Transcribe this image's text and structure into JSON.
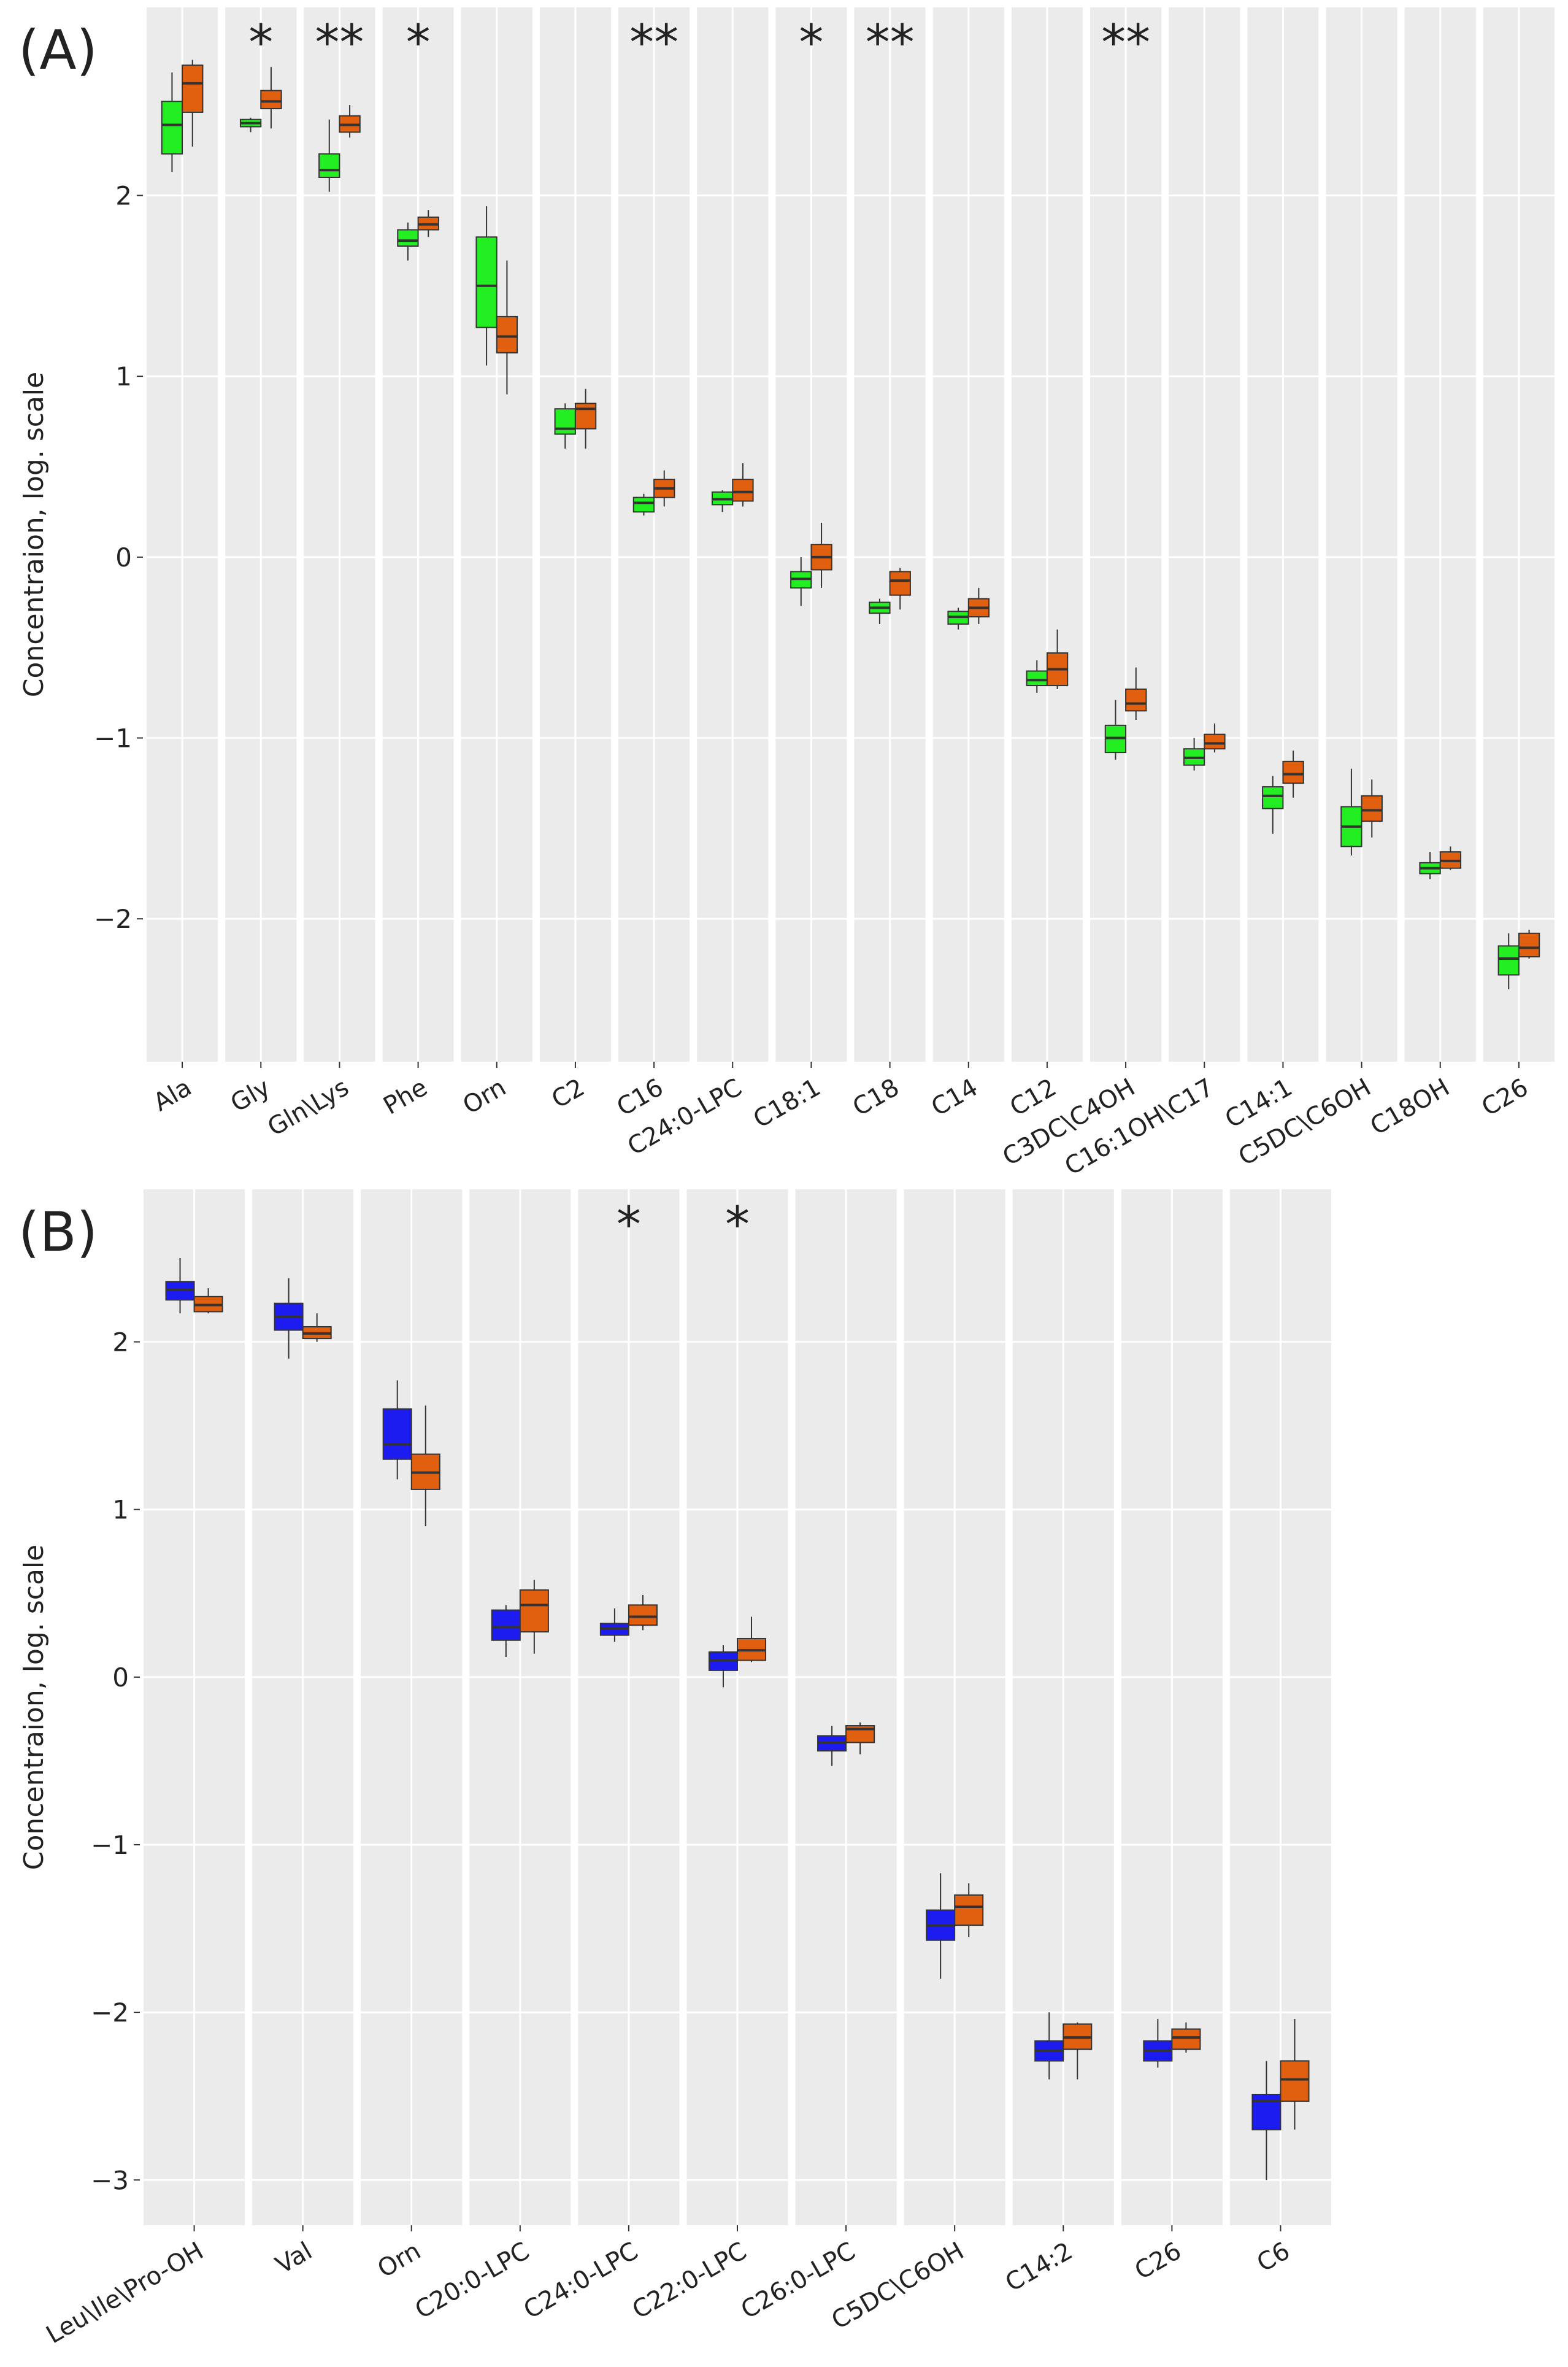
{
  "chart_data": [
    {
      "type": "box",
      "panel_label": "(A)",
      "ylabel": "Concentraion, log. scale",
      "categories": [
        "Ala",
        "Gly",
        "Gln\\Lys",
        "Phe",
        "Orn",
        "C2",
        "C16",
        "C24:0-LPC",
        "C18:1",
        "C18",
        "C14",
        "C12",
        "C3DC\\C4OH",
        "C16:1OH\\C17",
        "C14:1",
        "C5DC\\C6OH",
        "C18OH",
        "C26"
      ],
      "annotations": [
        null,
        "*",
        "**",
        "*",
        null,
        null,
        "**",
        null,
        "*",
        "**",
        null,
        null,
        "**",
        null,
        null,
        null,
        null,
        null
      ],
      "series": [
        {
          "color": "#22ee22",
          "values": [
            [
              2.13,
              2.23,
              2.39,
              2.52,
              2.68
            ],
            [
              2.35,
              2.38,
              2.4,
              2.42,
              2.43
            ],
            [
              2.02,
              2.1,
              2.14,
              2.23,
              2.42
            ],
            [
              1.64,
              1.72,
              1.75,
              1.81,
              1.85
            ],
            [
              1.06,
              1.27,
              1.5,
              1.77,
              1.94
            ],
            [
              0.6,
              0.68,
              0.71,
              0.82,
              0.85
            ],
            [
              0.23,
              0.25,
              0.3,
              0.33,
              0.35
            ],
            [
              0.25,
              0.29,
              0.32,
              0.36,
              0.37
            ],
            [
              -0.27,
              -0.17,
              -0.12,
              -0.08,
              0
            ],
            [
              -0.37,
              -0.31,
              -0.28,
              -0.25,
              -0.23
            ],
            [
              -0.4,
              -0.37,
              -0.33,
              -0.3,
              -0.28
            ],
            [
              -0.75,
              -0.71,
              -0.68,
              -0.63,
              -0.57
            ],
            [
              -1.12,
              -1.08,
              -1.0,
              -0.93,
              -0.79
            ],
            [
              -1.18,
              -1.15,
              -1.11,
              -1.06,
              -1.0
            ],
            [
              -1.53,
              -1.39,
              -1.32,
              -1.27,
              -1.21
            ],
            [
              -1.65,
              -1.6,
              -1.49,
              -1.38,
              -1.17
            ],
            [
              -1.78,
              -1.75,
              -1.72,
              -1.69,
              -1.63
            ],
            [
              -2.39,
              -2.31,
              -2.22,
              -2.15,
              -2.08
            ]
          ]
        },
        {
          "color": "#e0600f",
          "values": [
            [
              2.27,
              2.46,
              2.62,
              2.72,
              2.75
            ],
            [
              2.37,
              2.48,
              2.52,
              2.58,
              2.71
            ],
            [
              2.32,
              2.35,
              2.39,
              2.44,
              2.5
            ],
            [
              1.77,
              1.81,
              1.84,
              1.88,
              1.92
            ],
            [
              0.9,
              1.13,
              1.22,
              1.33,
              1.64
            ],
            [
              0.6,
              0.71,
              0.82,
              0.85,
              0.93
            ],
            [
              0.28,
              0.33,
              0.38,
              0.43,
              0.48
            ],
            [
              0.28,
              0.31,
              0.36,
              0.43,
              0.52
            ],
            [
              -0.17,
              -0.07,
              0,
              0.07,
              0.19
            ],
            [
              -0.29,
              -0.21,
              -0.13,
              -0.08,
              -0.06
            ],
            [
              -0.37,
              -0.33,
              -0.28,
              -0.23,
              -0.17
            ],
            [
              -0.73,
              -0.71,
              -0.62,
              -0.53,
              -0.4
            ],
            [
              -0.9,
              -0.85,
              -0.81,
              -0.73,
              -0.61
            ],
            [
              -1.08,
              -1.06,
              -1.03,
              -0.98,
              -0.92
            ],
            [
              -1.33,
              -1.25,
              -1.2,
              -1.13,
              -1.07
            ],
            [
              -1.55,
              -1.46,
              -1.4,
              -1.32,
              -1.23
            ],
            [
              -1.73,
              -1.72,
              -1.68,
              -1.63,
              -1.6
            ],
            [
              -2.22,
              -2.21,
              -2.16,
              -2.08,
              -2.06
            ]
          ]
        }
      ],
      "ylim": [
        -2.79,
        3.04
      ],
      "yticks": [
        {
          "value": -2,
          "label": "−2"
        },
        {
          "value": -1,
          "label": "−1"
        },
        0,
        1,
        2
      ],
      "grid": true
    },
    {
      "type": "box",
      "panel_label": "(B)",
      "ylabel": "Concentraion, log. scale",
      "categories": [
        "Leu\\Ile\\Pro-OH",
        "Val",
        "Orn",
        "C20:0-LPC",
        "C24:0-LPC",
        "C22:0-LPC",
        "C26:0-LPC",
        "C5DC\\C6OH",
        "C14:2",
        "C26",
        "C6"
      ],
      "annotations": [
        null,
        null,
        null,
        null,
        "*",
        "*",
        null,
        null,
        null,
        null,
        null
      ],
      "series": [
        {
          "color": "#1c1cf0",
          "values": [
            [
              2.17,
              2.25,
              2.31,
              2.36,
              2.5
            ],
            [
              1.9,
              2.07,
              2.15,
              2.23,
              2.38
            ],
            [
              1.18,
              1.3,
              1.39,
              1.6,
              1.77
            ],
            [
              0.12,
              0.22,
              0.3,
              0.4,
              0.43
            ],
            [
              0.21,
              0.25,
              0.29,
              0.32,
              0.41
            ],
            [
              -0.06,
              0.04,
              0.1,
              0.15,
              0.19
            ],
            [
              -0.53,
              -0.44,
              -0.39,
              -0.35,
              -0.29
            ],
            [
              -1.8,
              -1.57,
              -1.48,
              -1.39,
              -1.17
            ],
            [
              -2.4,
              -2.29,
              -2.23,
              -2.17,
              -2.0
            ],
            [
              -2.33,
              -2.29,
              -2.23,
              -2.17,
              -2.04
            ],
            [
              -3.0,
              -2.7,
              -2.53,
              -2.49,
              -2.29
            ]
          ]
        },
        {
          "color": "#e0600f",
          "values": [
            [
              2.17,
              2.18,
              2.22,
              2.27,
              2.32
            ],
            [
              2.0,
              2.02,
              2.05,
              2.09,
              2.17
            ],
            [
              0.9,
              1.12,
              1.22,
              1.33,
              1.62
            ],
            [
              0.14,
              0.27,
              0.43,
              0.52,
              0.58
            ],
            [
              0.28,
              0.31,
              0.36,
              0.43,
              0.49
            ],
            [
              0.09,
              0.1,
              0.16,
              0.23,
              0.36
            ],
            [
              -0.46,
              -0.39,
              -0.31,
              -0.29,
              -0.27
            ],
            [
              -1.55,
              -1.48,
              -1.37,
              -1.3,
              -1.23
            ],
            [
              -2.4,
              -2.22,
              -2.15,
              -2.07,
              -2.06
            ],
            [
              -2.24,
              -2.22,
              -2.15,
              -2.1,
              -2.06
            ],
            [
              -2.7,
              -2.53,
              -2.4,
              -2.29,
              -2.04
            ]
          ]
        }
      ],
      "ylim": [
        -3.27,
        2.91
      ],
      "yticks": [
        {
          "value": -3,
          "label": "−3"
        },
        {
          "value": -2,
          "label": "−2"
        },
        {
          "value": -1,
          "label": "−1"
        },
        0,
        1,
        2
      ],
      "grid": true
    }
  ]
}
